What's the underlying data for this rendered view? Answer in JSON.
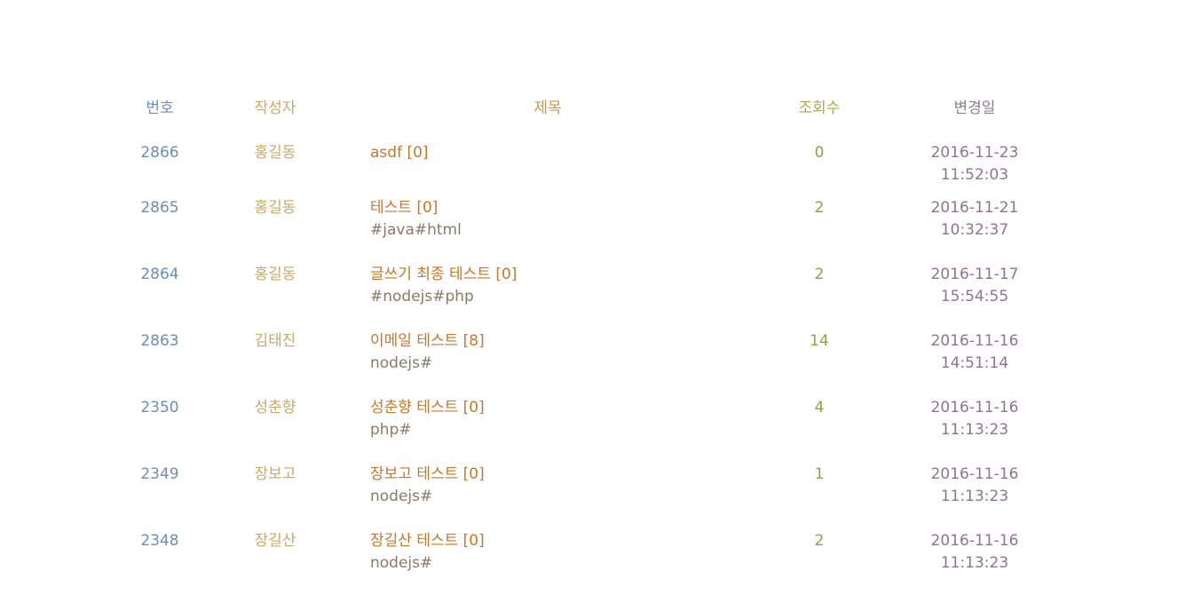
{
  "columns": {
    "number": "번호",
    "author": "작성자",
    "title": "제목",
    "views": "조회수",
    "modified": "변경일"
  },
  "rows": [
    {
      "number": "2866",
      "author": "홍길동",
      "title": "asdf [0]",
      "tags": "",
      "views": "0",
      "date": "2016-11-23",
      "time": "11:52:03"
    },
    {
      "number": "2865",
      "author": "홍길동",
      "title": "테스트 [0]",
      "tags": "#java#html",
      "views": "2",
      "date": "2016-11-21",
      "time": "10:32:37"
    },
    {
      "number": "2864",
      "author": "홍길동",
      "title": "글쓰기 최종 테스트 [0]",
      "tags": "#nodejs#php",
      "views": "2",
      "date": "2016-11-17",
      "time": "15:54:55"
    },
    {
      "number": "2863",
      "author": "김태진",
      "title": "이메일 테스트 [8]",
      "tags": "nodejs#",
      "views": "14",
      "date": "2016-11-16",
      "time": "14:51:14"
    },
    {
      "number": "2350",
      "author": "성춘향",
      "title": "성춘향 테스트 [0]",
      "tags": "php#",
      "views": "4",
      "date": "2016-11-16",
      "time": "11:13:23"
    },
    {
      "number": "2349",
      "author": "장보고",
      "title": "장보고 테스트 [0]",
      "tags": "nodejs#",
      "views": "1",
      "date": "2016-11-16",
      "time": "11:13:23"
    },
    {
      "number": "2348",
      "author": "장길산",
      "title": "장길산 테스트 [0]",
      "tags": "nodejs#",
      "views": "2",
      "date": "2016-11-16",
      "time": "11:13:23"
    }
  ]
}
